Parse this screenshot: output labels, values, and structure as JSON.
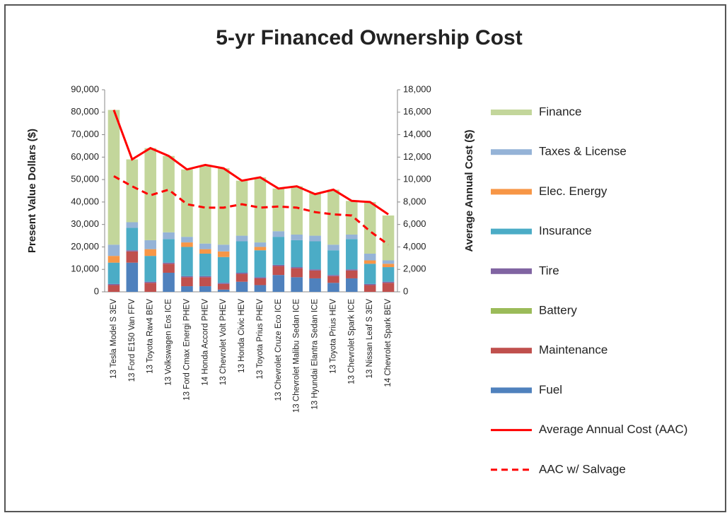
{
  "chart_data": {
    "type": "bar",
    "stacked": true,
    "title": "5-yr Financed Ownership Cost",
    "ylabel": "Present Value Dollars ($)",
    "y2label": "Average Annual Cost ($)",
    "categories": [
      "13 Tesla Model S 3EV",
      "13 Ford E150 Van FFV",
      "13 Toyota Rav4 BEV",
      "13 Volkswagen Eos ICE",
      "13 Ford Cmax Energi PHEV",
      "14 Honda Accord PHEV",
      "13 Chevrolet Volt PHEV",
      "13 Honda Civic HEV",
      "13 Toyota Prius PHEV",
      "13 Chevrolet Cruze Eco ICE",
      "13 Chevrolet Malibu Sedan ICE",
      "13 Hyundai Elantra Sedan ICE",
      "13 Toyota Prius HEV",
      "13 Chevrolet Spark ICE",
      "13 Nissan Leaf S 3EV",
      "14 Chevrolet Spark BEV"
    ],
    "series": [
      {
        "name": "Fuel",
        "color": "#4f81bd",
        "values": [
          0,
          13000,
          0,
          8500,
          2500,
          2500,
          1000,
          4500,
          3000,
          7500,
          6500,
          6000,
          4000,
          6000,
          0,
          0
        ]
      },
      {
        "name": "Maintenance",
        "color": "#c0504d",
        "values": [
          3000,
          5000,
          4000,
          4000,
          4000,
          4000,
          2500,
          3500,
          3000,
          4000,
          4000,
          3500,
          3000,
          3500,
          3000,
          4000
        ]
      },
      {
        "name": "Battery",
        "color": "#9bbb59",
        "values": [
          0,
          0,
          0,
          0,
          0,
          0,
          0,
          0,
          0,
          0,
          0,
          0,
          0,
          0,
          0,
          0
        ]
      },
      {
        "name": "Tire",
        "color": "#8064a2",
        "values": [
          500,
          500,
          500,
          500,
          500,
          500,
          500,
          500,
          500,
          500,
          500,
          500,
          500,
          500,
          500,
          500
        ]
      },
      {
        "name": "Insurance",
        "color": "#4bacc6",
        "values": [
          9500,
          10000,
          11500,
          10500,
          13000,
          10000,
          11500,
          14000,
          12000,
          12500,
          12000,
          12500,
          11000,
          13500,
          9000,
          6500
        ]
      },
      {
        "name": "Elec. Energy",
        "color": "#f79646",
        "values": [
          3000,
          0,
          3000,
          0,
          2000,
          2000,
          2500,
          0,
          1500,
          0,
          0,
          0,
          0,
          0,
          1500,
          1500
        ]
      },
      {
        "name": "Taxes & License",
        "color": "#95b3d7",
        "values": [
          5000,
          2500,
          4000,
          3000,
          2500,
          2500,
          3000,
          2500,
          2000,
          2500,
          2500,
          2500,
          2500,
          2000,
          3000,
          1500
        ]
      },
      {
        "name": "Finance",
        "color": "#c3d69b",
        "values": [
          60000,
          28000,
          41000,
          34000,
          30000,
          34500,
          34000,
          24500,
          29000,
          19000,
          21500,
          19000,
          24500,
          15000,
          23000,
          20000
        ]
      },
      {
        "name": "Average Annual Cost (AAC)",
        "type": "line",
        "axis": "y2",
        "color": "#ff0000",
        "values": [
          16200,
          11800,
          12800,
          12100,
          10900,
          11300,
          11000,
          9900,
          10200,
          9200,
          9400,
          8700,
          9100,
          8100,
          8000,
          6900
        ]
      },
      {
        "name": "AAC w/ Salvage",
        "type": "line",
        "axis": "y2",
        "dashed": true,
        "color": "#ff0000",
        "values": [
          10300,
          9400,
          8600,
          9100,
          7800,
          7500,
          7500,
          7800,
          7500,
          7600,
          7500,
          7100,
          6900,
          6800,
          5400,
          4200
        ]
      }
    ],
    "ylim": [
      0,
      90000
    ],
    "yticks": [
      0,
      {
        "value": 10000,
        "label": "10,000"
      },
      {
        "value": 20000,
        "label": "20,000"
      },
      {
        "value": 30000,
        "label": "30,000"
      },
      {
        "value": 40000,
        "label": "40,000"
      },
      {
        "value": 50000,
        "label": "50,000"
      },
      {
        "value": 60000,
        "label": "60,000"
      },
      {
        "value": 70000,
        "label": "70,000"
      },
      {
        "value": 80000,
        "label": "80,000"
      },
      {
        "value": 90000,
        "label": "90,000"
      }
    ],
    "y2lim": [
      0,
      18000
    ],
    "y2ticks": [
      0,
      {
        "value": 2000,
        "label": "2,000"
      },
      {
        "value": 4000,
        "label": "4,000"
      },
      {
        "value": 6000,
        "label": "6,000"
      },
      {
        "value": 8000,
        "label": "8,000"
      },
      {
        "value": 10000,
        "label": "10,000"
      },
      {
        "value": 12000,
        "label": "12,000"
      },
      {
        "value": 14000,
        "label": "14,000"
      },
      {
        "value": 16000,
        "label": "16,000"
      },
      {
        "value": 18000,
        "label": "18,000"
      }
    ],
    "grid": false,
    "legend": "right"
  }
}
